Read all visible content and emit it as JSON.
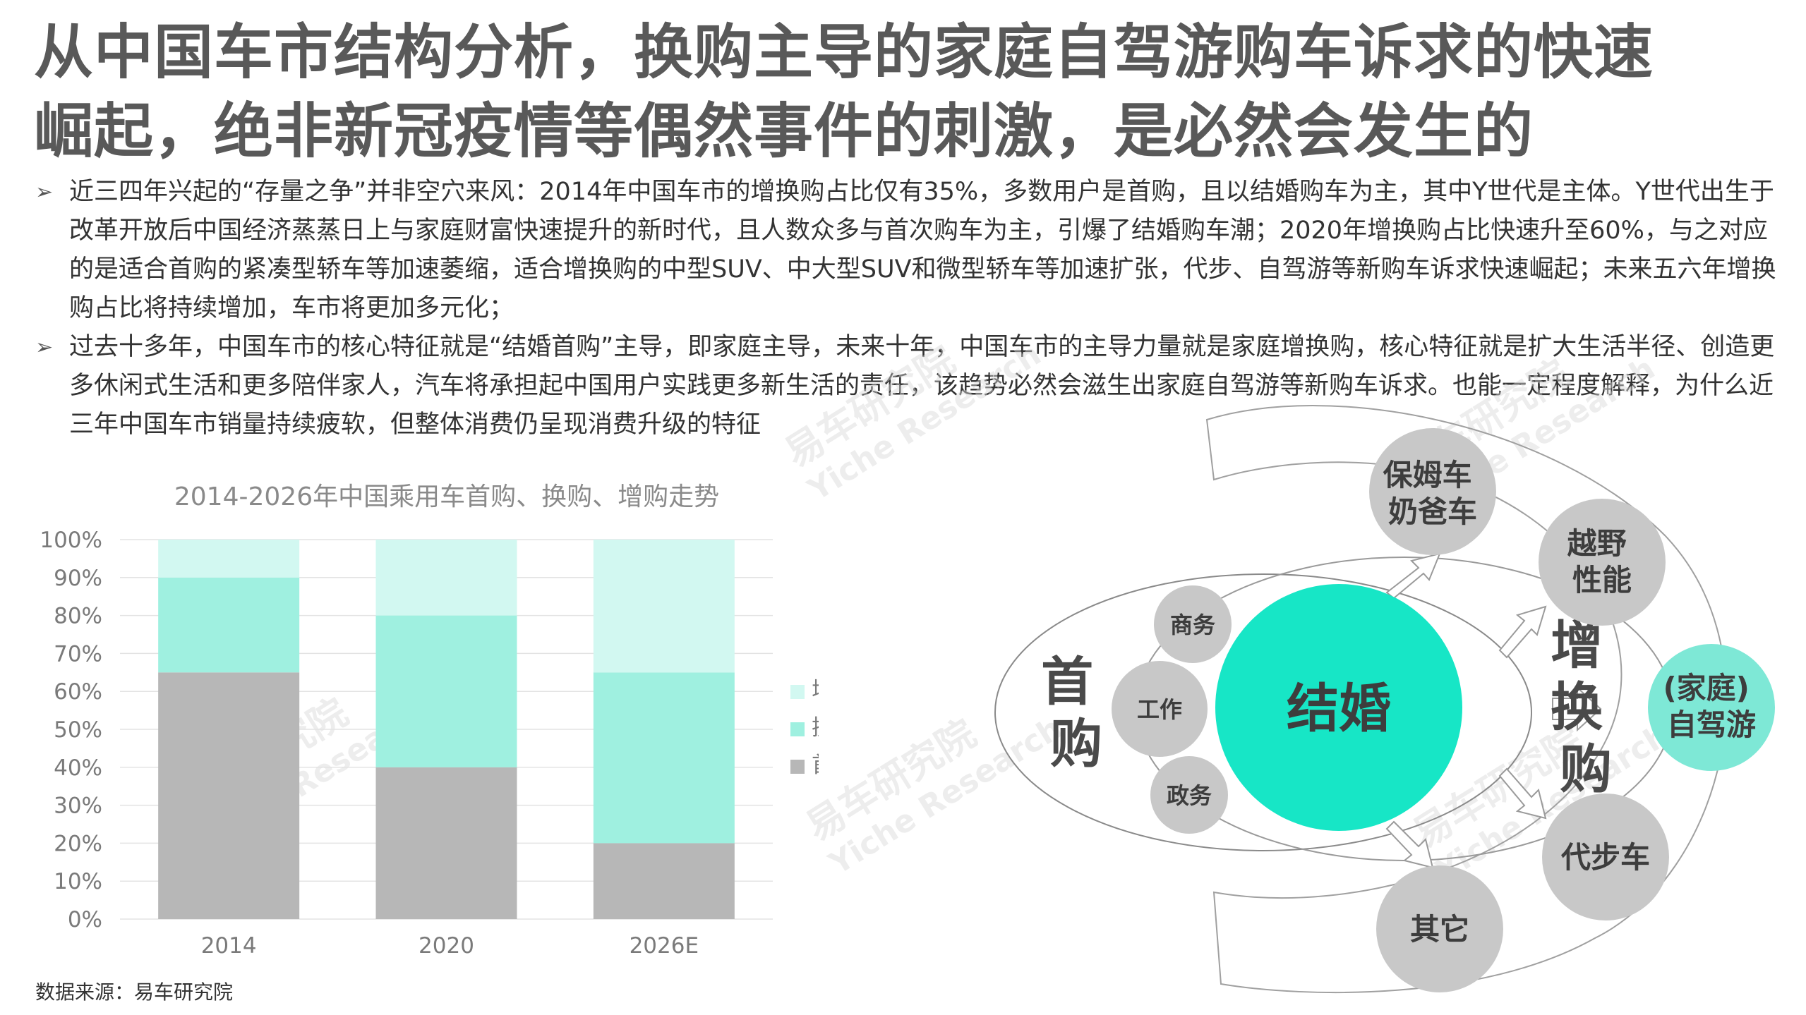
{
  "title": {
    "line1": "从中国车市结构分析，换购主导的家庭自驾游购车诉求的快速",
    "line2": "崛起，绝非新冠疫情等偶然事件的刺激，是必然会发生的"
  },
  "bullets": [
    "近三四年兴起的“存量之争”并非空穴来风：2014年中国车市的增换购占比仅有35%，多数用户是首购，且以结婚购车为主，其中Y世代是主体。Y世代出生于改革开放后中国经济蒸蒸日上与家庭财富快速提升的新时代，且人数众多与首次购车为主，引爆了结婚购车潮；2020年增换购占比快速升至60%，与之对应的是适合首购的紧凑型轿车等加速萎缩，适合增换购的中型SUV、中大型SUV和微型轿车等加速扩张，代步、自驾游等新购车诉求快速崛起；未来五六年增换购占比将持续增加，车市将更加多元化；",
    "过去十多年，中国车市的核心特征就是“结婚首购”主导，即家庭主导，未来十年，中国车市的主导力量就是家庭增换购，核心特征就是扩大生活半径、创造更多休闲式生活和更多陪伴家人，汽车将承担起中国用户实践更多新生活的责任，该趋势必然会滋生出家庭自驾游等新购车诉求。也能一定程度解释，为什么近三年中国车市销量持续疲软，但整体消费仍呈现消费升级的特征"
  ],
  "chart_data": {
    "type": "bar",
    "stacked": true,
    "title": "2014-2026年中国乘用车首购、换购、增购走势",
    "categories": [
      "2014",
      "2020",
      "2026E"
    ],
    "series": [
      {
        "name": "首购",
        "values": [
          65,
          40,
          20
        ],
        "color": "#b7b7b7"
      },
      {
        "name": "换购",
        "values": [
          25,
          40,
          45
        ],
        "color": "#9ff0e0"
      },
      {
        "name": "增购",
        "values": [
          10,
          20,
          35
        ],
        "color": "#d2f8f1"
      }
    ],
    "y_ticks": [
      "0%",
      "10%",
      "20%",
      "30%",
      "40%",
      "50%",
      "60%",
      "70%",
      "80%",
      "90%",
      "100%"
    ],
    "ylim": [
      0,
      100
    ],
    "grid": true,
    "legend": "right"
  },
  "diagram": {
    "first_buy": "首购",
    "marriage": "结婚",
    "small": [
      "商务",
      "工作",
      "政务"
    ],
    "upgrade": "增换购",
    "outer": [
      "保姆车奶爸车",
      "越野性能",
      "代步车",
      "其它"
    ],
    "highlight": "(家庭)自驾游",
    "colors": {
      "accent": "#17e6c6",
      "grey": "#c8c8c8",
      "light": "#7ee8d6"
    }
  },
  "source": "数据来源：易车研究院",
  "watermark": {
    "cn": "易车研究院",
    "en": "Yiche Research"
  }
}
